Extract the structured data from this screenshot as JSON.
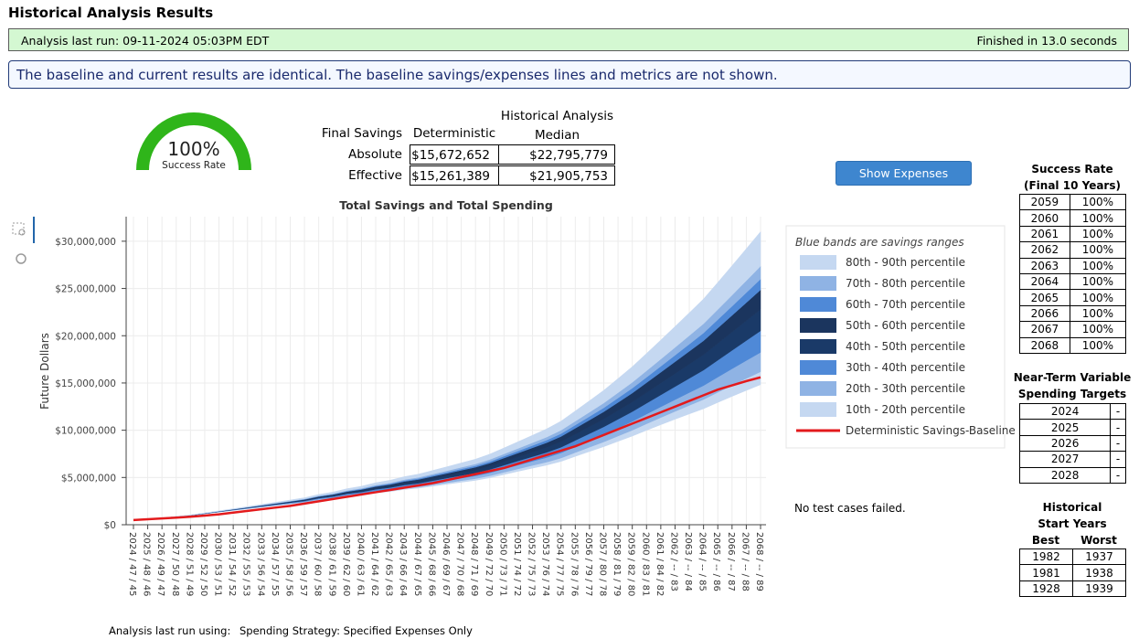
{
  "header": {
    "title": "Historical Analysis Results"
  },
  "status": {
    "last_run": "Analysis last run: 09-11-2024 05:03PM EDT",
    "duration": "Finished in 13.0 seconds"
  },
  "notice": "The baseline and current results are identical. The baseline savings/expenses lines and metrics are not shown.",
  "gauge": {
    "value": "100%",
    "label": "Success Rate"
  },
  "metrics": {
    "corner": "Final Savings",
    "columns": [
      "Deterministic",
      "Historical Analysis Median"
    ],
    "rows": [
      [
        "Absolute",
        "$15,672,652",
        "$22,795,779"
      ],
      [
        "Effective",
        "$15,261,389",
        "$21,905,753"
      ]
    ]
  },
  "button": "Show Expenses",
  "success_table": {
    "title": "Success Rate",
    "subtitle": "(Final 10 Years)",
    "rows": [
      [
        "2059",
        "100%"
      ],
      [
        "2060",
        "100%"
      ],
      [
        "2061",
        "100%"
      ],
      [
        "2062",
        "100%"
      ],
      [
        "2063",
        "100%"
      ],
      [
        "2064",
        "100%"
      ],
      [
        "2065",
        "100%"
      ],
      [
        "2066",
        "100%"
      ],
      [
        "2067",
        "100%"
      ],
      [
        "2068",
        "100%"
      ]
    ]
  },
  "spending_table": {
    "title": "Near-Term Variable Spending Targets",
    "rows": [
      [
        "2024",
        "-"
      ],
      [
        "2025",
        "-"
      ],
      [
        "2026",
        "-"
      ],
      [
        "2027",
        "-"
      ],
      [
        "2028",
        "-"
      ]
    ]
  },
  "start_years": {
    "title": "Historical Start Years",
    "columns": [
      "Best",
      "Worst"
    ],
    "rows": [
      [
        "1982",
        "1937"
      ],
      [
        "1981",
        "1938"
      ],
      [
        "1928",
        "1939"
      ]
    ]
  },
  "test_status": "No test cases failed.",
  "footer": {
    "label": "Analysis last run using:",
    "value": "Spending Strategy: Specified Expenses Only"
  },
  "chart_data": {
    "type": "area",
    "title": "Total Savings and Total Spending",
    "ylabel": "Future Dollars",
    "legend_title": "Blue bands are savings ranges",
    "grid": true,
    "categories": [
      "2024 / 47 / 45",
      "2025 / 48 / 46",
      "2026 / 49 / 47",
      "2027 / 50 / 48",
      "2028 / 51 / 49",
      "2029 / 52 / 50",
      "2030 / 53 / 51",
      "2031 / 54 / 52",
      "2032 / 55 / 53",
      "2033 / 56 / 54",
      "2034 / 57 / 55",
      "2035 / 58 / 56",
      "2036 / 59 / 57",
      "2037 / 60 / 58",
      "2038 / 61 / 59",
      "2039 / 62 / 60",
      "2040 / 63 / 61",
      "2041 / 64 / 62",
      "2042 / 65 / 63",
      "2043 / 66 / 64",
      "2044 / 67 / 65",
      "2045 / 68 / 66",
      "2046 / 69 / 67",
      "2047 / 70 / 68",
      "2048 / 71 / 69",
      "2049 / 72 / 70",
      "2050 / 73 / 71",
      "2051 / 74 / 72",
      "2052 / 75 / 73",
      "2053 / 76 / 74",
      "2054 / 77 / 75",
      "2055 / 78 / 76",
      "2056 / 79 / 77",
      "2057 / 80 / 78",
      "2058 / 81 / 79",
      "2059 / 82 / 80",
      "2060 / 83 / 81",
      "2061 / 84 / 82",
      "2062 / -- / 83",
      "2063 / -- / 84",
      "2064 / -- / 85",
      "2065 / -- / 86",
      "2066 / -- / 87",
      "2067 / -- / 88",
      "2068 / -- / 89"
    ],
    "ylim": [
      0,
      32600000.0
    ],
    "yticks": [
      {
        "value": 0,
        "label": "$0"
      },
      {
        "value": 5000000,
        "label": "$5,000,000"
      },
      {
        "value": 10000000,
        "label": "$10,000,000"
      },
      {
        "value": 15000000,
        "label": "$15,000,000"
      },
      {
        "value": 20000000,
        "label": "$20,000,000"
      },
      {
        "value": 25000000,
        "label": "$25,000,000"
      },
      {
        "value": 30000000,
        "label": "$30,000,000"
      }
    ],
    "series": [
      {
        "name": "10th - 20th percentile",
        "color": "#c5d8f1",
        "from": [
          500000.0,
          595000.0,
          689000.0,
          830000.0,
          968000.0,
          1152000.0,
          1333000.0,
          1511000.0,
          1686000.0,
          1857000.0,
          2025000.0,
          2190000.0,
          2352000.0,
          2600000.0,
          2755000.0,
          2994000.0,
          3142000.0,
          3373000.0,
          3513000.0,
          3735000.0,
          3868000.0,
          4081000.0,
          4290000.0,
          4494000.0,
          4693000.0,
          4967000.0,
          5314000.0,
          5654000.0,
          5985000.0,
          6308000.0,
          6700000.0,
          7233000.0,
          7753000.0,
          8260000.0,
          8827000.0,
          9381000.0,
          9992000.0,
          10586000.0,
          11163000.0,
          11725000.0,
          12274000.0,
          12938000.0,
          13585000.0,
          14211000.0,
          14820000.0
        ],
        "values": [
          0,
          1000.0,
          2000.0,
          3000.0,
          5000.0,
          8000.0,
          11000.0,
          15000.0,
          20000.0,
          25000.0,
          30000.0,
          36000.0,
          43000.0,
          51000.0,
          59000.0,
          70000.0,
          79000.0,
          90000.0,
          101000.0,
          114000.0,
          125000.0,
          140000.0,
          156000.0,
          173000.0,
          190000.0,
          211000.0,
          238000.0,
          265000.0,
          294000.0,
          324000.0,
          360000.0,
          406000.0,
          454000.0,
          504000.0,
          561000.0,
          620000.0,
          687000.0,
          757000.0,
          829000.0,
          904000.0,
          982000.0,
          1073000.0,
          1168000.0,
          1267000.0,
          1368000.0
        ]
      },
      {
        "name": "20th - 30th percentile",
        "color": "#8fb3e4",
        "values": [
          0,
          1000.0,
          3000.0,
          5000.0,
          8000.0,
          12000.0,
          17000.0,
          23000.0,
          29000.0,
          37000.0,
          45000.0,
          54000.0,
          64000.0,
          77000.0,
          89000.0,
          104000.0,
          118000.0,
          136000.0,
          151000.0,
          171000.0,
          188000.0,
          211000.0,
          234000.0,
          259000.0,
          285000.0,
          317000.0,
          356000.0,
          398000.0,
          441000.0,
          486000.0,
          540000.0,
          609000.0,
          681000.0,
          756000.0,
          842000.0,
          931000.0,
          1031000.0,
          1135000.0,
          1244000.0,
          1356000.0,
          1472000.0,
          1610000.0,
          1752000.0,
          1900000.0,
          2052000.0
        ]
      },
      {
        "name": "30th - 40th percentile",
        "color": "#4f89d7",
        "values": [
          0,
          1000.0,
          3000.0,
          6000.0,
          9000.0,
          14000.0,
          19000.0,
          26000.0,
          33000.0,
          41000.0,
          50000.0,
          60000.0,
          71000.0,
          86000.0,
          99000.0,
          116000.0,
          131000.0,
          151000.0,
          168000.0,
          190000.0,
          209000.0,
          234000.0,
          260000.0,
          288000.0,
          316000.0,
          352000.0,
          396000.0,
          442000.0,
          490000.0,
          541000.0,
          600000.0,
          676000.0,
          756000.0,
          840000.0,
          935000.0,
          1034000.0,
          1145000.0,
          1261000.0,
          1382000.0,
          1507000.0,
          1636000.0,
          1789000.0,
          1947000.0,
          2111000.0,
          2280000.0
        ]
      },
      {
        "name": "40th - 50th percentile",
        "color": "#1a3a68",
        "values": [
          0,
          1000.0,
          3000.0,
          6000.0,
          9000.0,
          14000.0,
          19000.0,
          26000.0,
          33000.0,
          41000.0,
          50000.0,
          60000.0,
          71000.0,
          86000.0,
          99000.0,
          116000.0,
          131000.0,
          151000.0,
          168000.0,
          190000.0,
          209000.0,
          234000.0,
          260000.0,
          288000.0,
          316000.0,
          352000.0,
          396000.0,
          442000.0,
          490000.0,
          541000.0,
          600000.0,
          676000.0,
          756000.0,
          840000.0,
          935000.0,
          1034000.0,
          1145000.0,
          1261000.0,
          1382000.0,
          1507000.0,
          1636000.0,
          1789000.0,
          1947000.0,
          2111000.0,
          2280000.0
        ]
      },
      {
        "name": "50th - 60th percentile",
        "color": "#1b355e",
        "values": [
          0,
          1000.0,
          3000.0,
          5000.0,
          8000.0,
          12000.0,
          17000.0,
          23000.0,
          29000.0,
          37000.0,
          45000.0,
          54000.0,
          64000.0,
          77000.0,
          89000.0,
          104000.0,
          118000.0,
          136000.0,
          151000.0,
          171000.0,
          188000.0,
          211000.0,
          234000.0,
          259000.0,
          285000.0,
          317000.0,
          356000.0,
          398000.0,
          441000.0,
          486000.0,
          540000.0,
          609000.0,
          681000.0,
          756000.0,
          842000.0,
          931000.0,
          1031000.0,
          1135000.0,
          1244000.0,
          1356000.0,
          1472000.0,
          1610000.0,
          1752000.0,
          1900000.0,
          2052000.0
        ]
      },
      {
        "name": "60th - 70th percentile",
        "color": "#4f89d7",
        "values": [
          0,
          1000.0,
          2000.0,
          3000.0,
          5000.0,
          7000.0,
          10000.0,
          13000.0,
          16000.0,
          20000.0,
          25000.0,
          30000.0,
          35000.0,
          43000.0,
          49000.0,
          58000.0,
          65000.0,
          75000.0,
          84000.0,
          95000.0,
          105000.0,
          117000.0,
          130000.0,
          144000.0,
          158000.0,
          176000.0,
          198000.0,
          221000.0,
          245000.0,
          270000.0,
          300000.0,
          338000.0,
          378000.0,
          420000.0,
          468000.0,
          517000.0,
          573000.0,
          631000.0,
          691000.0,
          754000.0,
          818000.0,
          895000.0,
          974000.0,
          1056000.0,
          1140000.0
        ]
      },
      {
        "name": "70th - 80th percentile",
        "color": "#8fb3e4",
        "values": [
          0,
          1000.0,
          2000.0,
          3000.0,
          5000.0,
          8000.0,
          11000.0,
          15000.0,
          20000.0,
          25000.0,
          30000.0,
          36000.0,
          43000.0,
          51000.0,
          59000.0,
          70000.0,
          79000.0,
          90000.0,
          101000.0,
          114000.0,
          125000.0,
          140000.0,
          156000.0,
          173000.0,
          190000.0,
          211000.0,
          238000.0,
          265000.0,
          294000.0,
          324000.0,
          360000.0,
          406000.0,
          454000.0,
          504000.0,
          561000.0,
          620000.0,
          687000.0,
          757000.0,
          829000.0,
          904000.0,
          982000.0,
          1073000.0,
          1168000.0,
          1267000.0,
          1368000.0
        ]
      },
      {
        "name": "80th - 90th percentile",
        "color": "#c5d8f1",
        "values": [
          0,
          2000.0,
          5000.0,
          9000.0,
          15000.0,
          22000.0,
          31000.0,
          41000.0,
          52000.0,
          65000.0,
          80000.0,
          96000.0,
          113000.0,
          137000.0,
          158000.0,
          185000.0,
          209000.0,
          241000.0,
          268000.0,
          304000.0,
          335000.0,
          374000.0,
          416000.0,
          460000.0,
          506000.0,
          564000.0,
          633000.0,
          707000.0,
          784000.0,
          865000.0,
          960000.0,
          1082000.0,
          1210000.0,
          1344000.0,
          1496000.0,
          1654000.0,
          1832000.0,
          2018000.0,
          2211000.0,
          2411000.0,
          2618000.0,
          2862000.0,
          3115000.0,
          3378000.0,
          3648000.0
        ]
      },
      {
        "name": "Deterministic Savings-Baseline",
        "type": "line",
        "color": "#e31a1c",
        "values": [
          500000.0,
          580000.0,
          660000.0,
          750000.0,
          850000.0,
          970000.0,
          1100000.0,
          1280000.0,
          1460000.0,
          1640000.0,
          1820000.0,
          2000000.0,
          2240000.0,
          2480000.0,
          2720000.0,
          2960000.0,
          3200000.0,
          3440000.0,
          3680000.0,
          3920000.0,
          4160000.0,
          4400000.0,
          4720000.0,
          5040000.0,
          5360000.0,
          5680000.0,
          6000000.0,
          6460000.0,
          6920000.0,
          7380000.0,
          7840000.0,
          8300000.0,
          8900000.0,
          9500000.0,
          10100000.0,
          10700000.0,
          11300000.0,
          11900000.0,
          12500000.0,
          13100000.0,
          13700000.0,
          14300000.0,
          14750000.0,
          15200000.0,
          15600000.0
        ]
      }
    ]
  }
}
